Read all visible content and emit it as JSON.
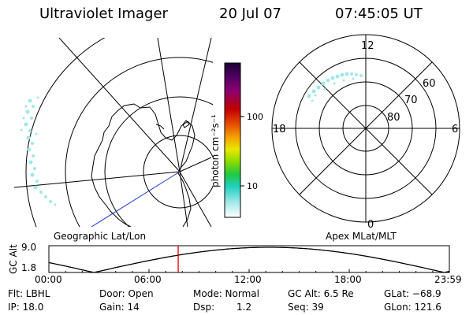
{
  "header": {
    "title": "Ultraviolet Imager",
    "date": "20 Jul 07",
    "time": "07:45:05 UT"
  },
  "colorbar": {
    "unit_label": "photon cm⁻²s⁻¹",
    "ticks": [
      "100",
      "10"
    ],
    "colors": [
      "#1a0030",
      "#4b0060",
      "#8b0070",
      "#c00000",
      "#e85000",
      "#f4a000",
      "#e8e800",
      "#8cdc00",
      "#20c840",
      "#20d0c0",
      "#a0e8e8",
      "#ffffff"
    ]
  },
  "left_map": {
    "label": "Geographic Lat/Lon",
    "track_color": "#1a3cc8"
  },
  "right_map": {
    "label": "Apex MLat/MLT",
    "mlt_labels": {
      "top": "12",
      "left": "18",
      "right": "6",
      "bottom": "0"
    },
    "lat_labels": [
      "60",
      "70",
      "80"
    ]
  },
  "timeline": {
    "ylabel": "GC Alt",
    "ymax": "9.0",
    "ymin": "1.8",
    "xticks": [
      "00:00",
      "06:00",
      "12:00",
      "18:00",
      "23:59"
    ],
    "marker_color": "#e00000",
    "current_hour": 7.75
  },
  "info": {
    "filter": "Flt: LBHL",
    "door": "Door: Open",
    "mode": "Mode: Normal",
    "gc_alt": "GC Alt: 6.5 Re",
    "glat": "GLat: −68.9",
    "ip": "IP: 18.0",
    "gain": "Gain: 14",
    "dsp_label": "Dsp:",
    "dsp_value": "1.2",
    "seq": "Seq: 39",
    "glon": "GLon: 121.6"
  }
}
